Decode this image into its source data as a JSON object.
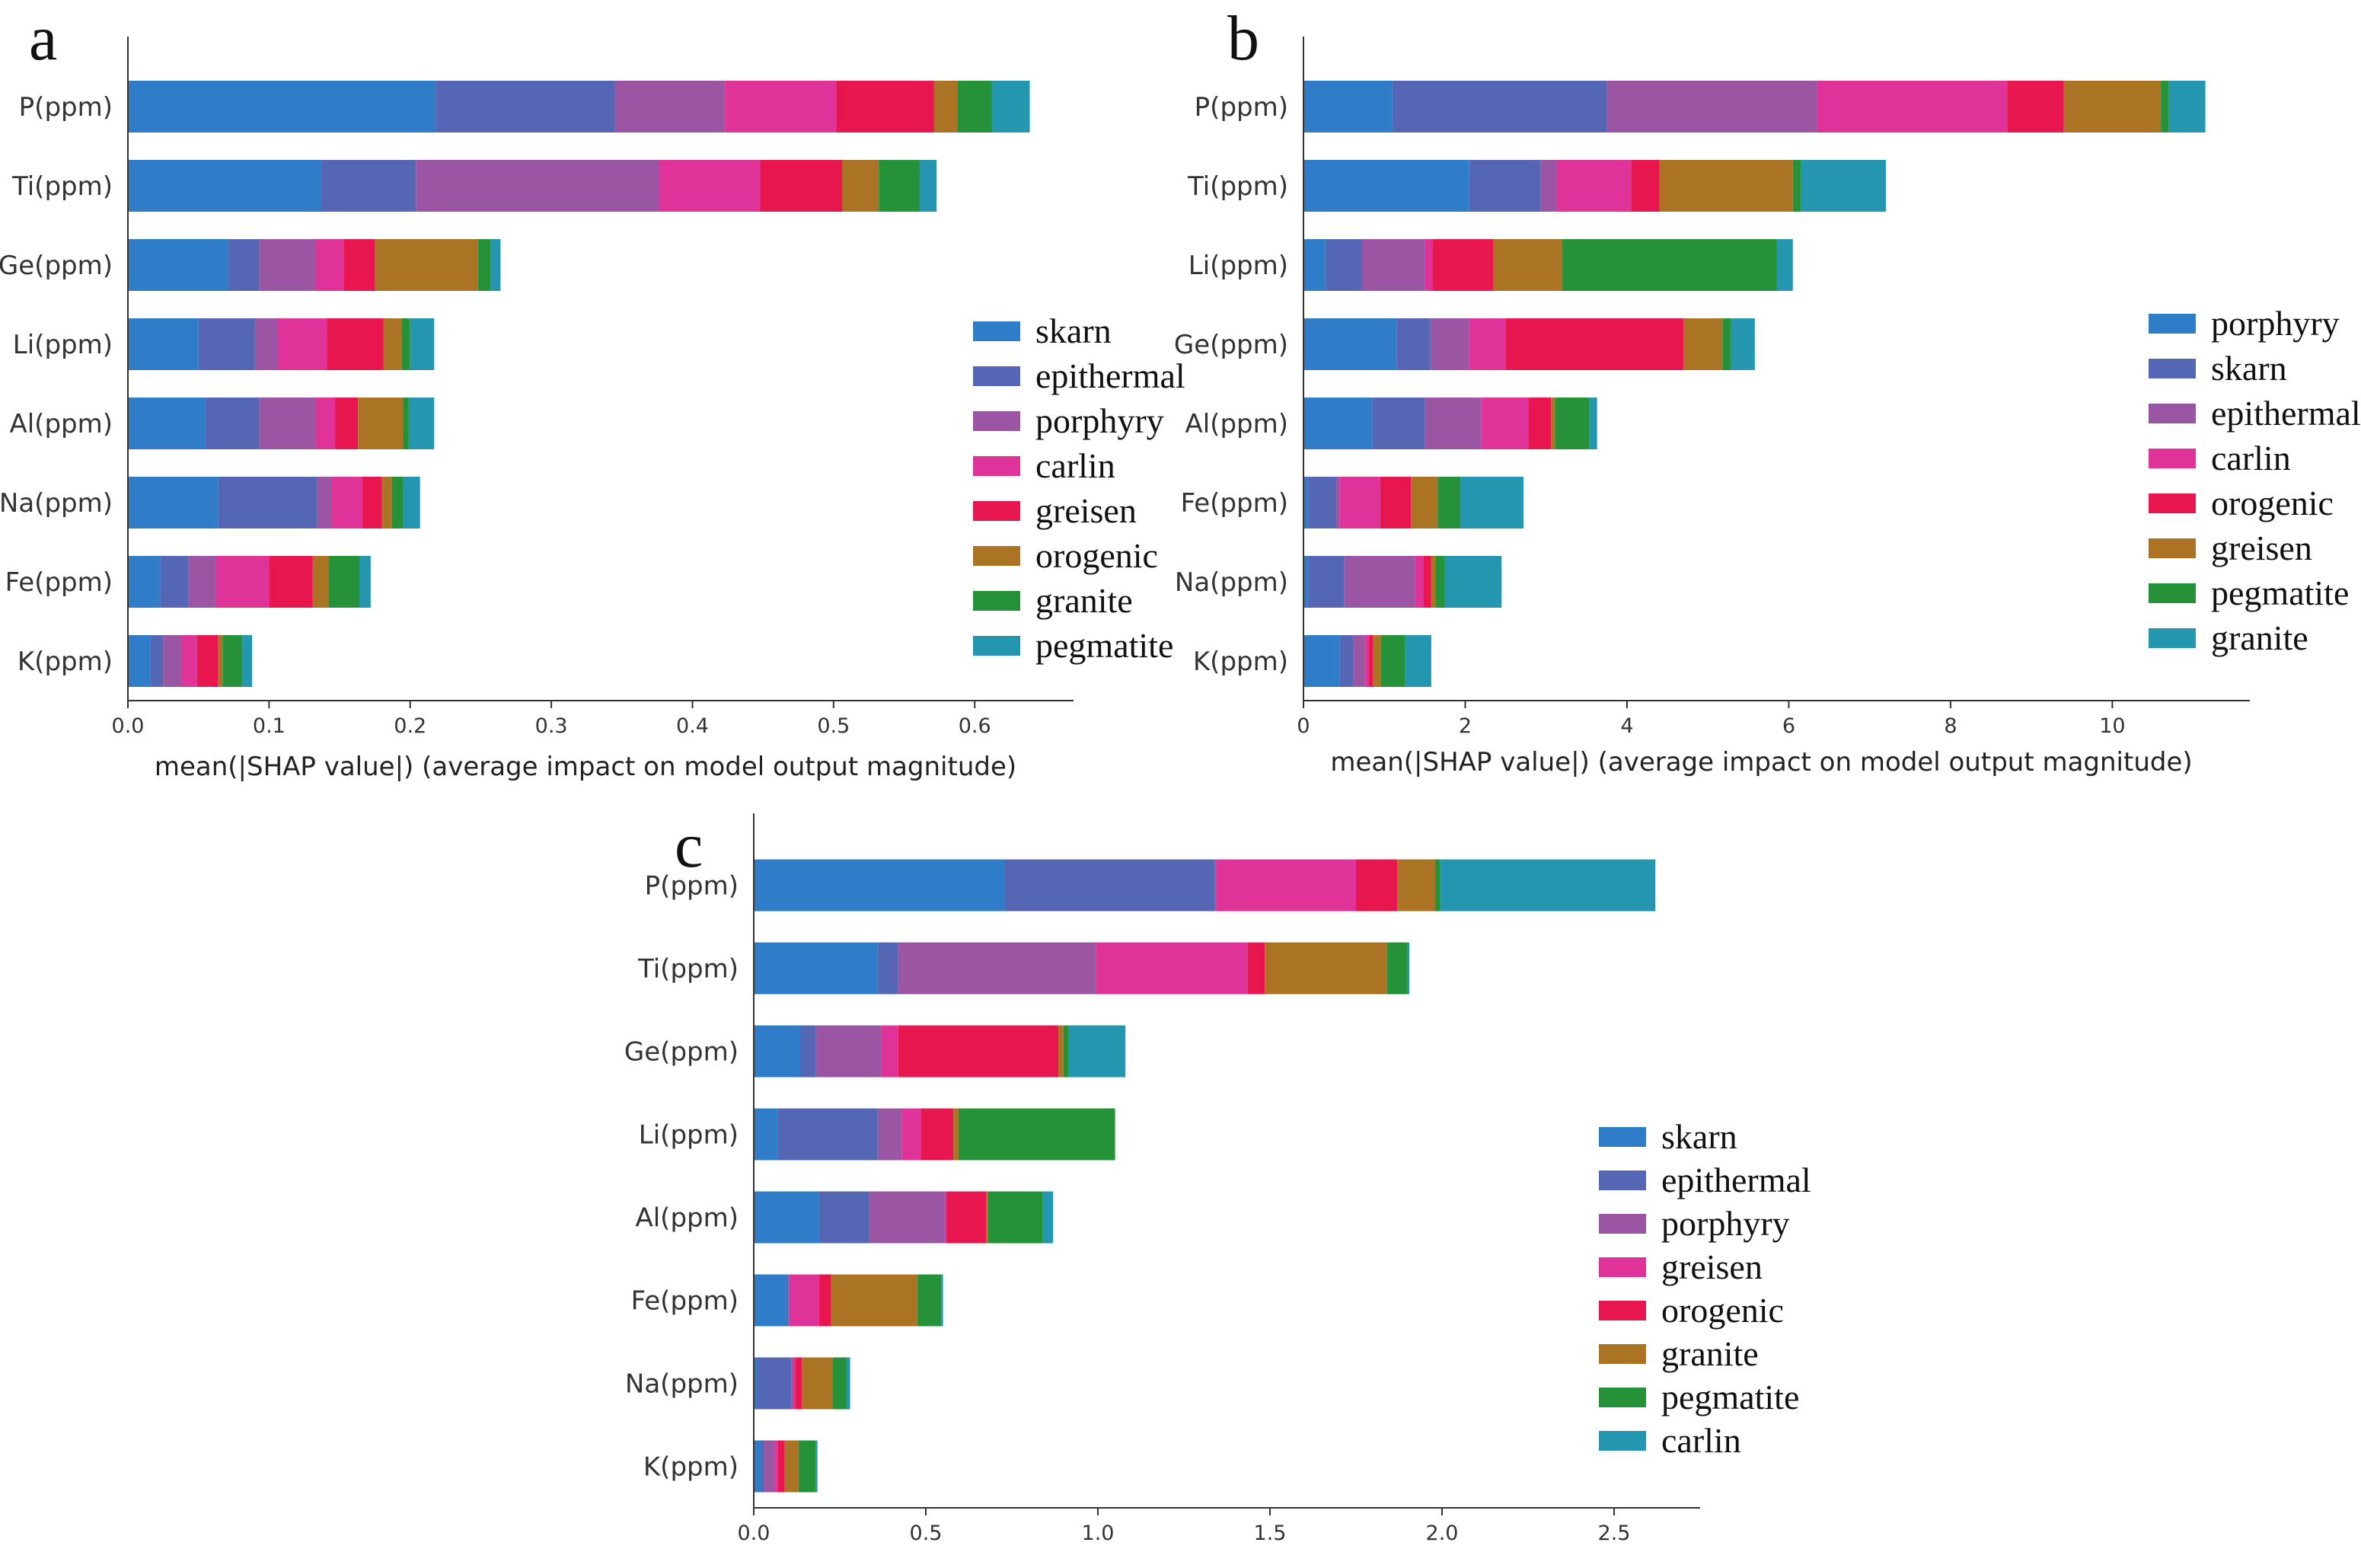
{
  "chart_data": [
    {
      "panel": "a",
      "type": "bar",
      "orientation": "horizontal",
      "stacked": true,
      "categories": [
        "P(ppm)",
        "Ti(ppm)",
        "Ge(ppm)",
        "Li(ppm)",
        "Al(ppm)",
        "Na(ppm)",
        "Fe(ppm)",
        "K(ppm)"
      ],
      "series": [
        {
          "name": "skarn",
          "color": "#2f7dc8",
          "values": [
            0.218,
            0.137,
            0.071,
            0.05,
            0.055,
            0.064,
            0.023,
            0.016
          ]
        },
        {
          "name": "epithermal",
          "color": "#5566b5",
          "values": [
            0.127,
            0.067,
            0.022,
            0.04,
            0.038,
            0.07,
            0.02,
            0.009
          ]
        },
        {
          "name": "porphyry",
          "color": "#9a55a3",
          "values": [
            0.078,
            0.172,
            0.04,
            0.016,
            0.04,
            0.01,
            0.019,
            0.013
          ]
        },
        {
          "name": "carlin",
          "color": "#e03399",
          "values": [
            0.079,
            0.072,
            0.02,
            0.035,
            0.014,
            0.022,
            0.038,
            0.011
          ]
        },
        {
          "name": "greisen",
          "color": "#e8164e",
          "values": [
            0.069,
            0.058,
            0.022,
            0.04,
            0.016,
            0.014,
            0.031,
            0.015
          ]
        },
        {
          "name": "orogenic",
          "color": "#aa7424",
          "values": [
            0.017,
            0.026,
            0.073,
            0.013,
            0.032,
            0.007,
            0.011,
            0.003
          ]
        },
        {
          "name": "granite",
          "color": "#259139",
          "values": [
            0.024,
            0.029,
            0.009,
            0.006,
            0.004,
            0.008,
            0.022,
            0.014
          ]
        },
        {
          "name": "pegmatite",
          "color": "#2596b0",
          "values": [
            0.027,
            0.012,
            0.007,
            0.017,
            0.018,
            0.012,
            0.008,
            0.007
          ]
        }
      ],
      "xlim": [
        0,
        0.67
      ],
      "xticks": [
        "0.0",
        "0.1",
        "0.2",
        "0.3",
        "0.4",
        "0.5",
        "0.6"
      ],
      "xtick_values": [
        0,
        0.1,
        0.2,
        0.3,
        0.4,
        0.5,
        0.6
      ],
      "xlabel": "mean(|SHAP value|) (average impact on model output magnitude)",
      "ylabel": "",
      "legend_position": "right"
    },
    {
      "panel": "b",
      "type": "bar",
      "orientation": "horizontal",
      "stacked": true,
      "categories": [
        "P(ppm)",
        "Ti(ppm)",
        "Li(ppm)",
        "Ge(ppm)",
        "Al(ppm)",
        "Fe(ppm)",
        "Na(ppm)",
        "K(ppm)"
      ],
      "series": [
        {
          "name": "porphyry",
          "color": "#2f7dc8",
          "values": [
            1.1,
            2.05,
            0.27,
            1.15,
            0.85,
            0.05,
            0.05,
            0.45
          ]
        },
        {
          "name": "skarn",
          "color": "#5566b5",
          "values": [
            2.65,
            0.88,
            0.45,
            0.42,
            0.65,
            0.35,
            0.45,
            0.17
          ]
        },
        {
          "name": "epithermal",
          "color": "#9a55a3",
          "values": [
            2.6,
            0.2,
            0.78,
            0.48,
            0.7,
            0.05,
            0.88,
            0.14
          ]
        },
        {
          "name": "carlin",
          "color": "#e03399",
          "values": [
            2.35,
            0.92,
            0.1,
            0.45,
            0.58,
            0.5,
            0.1,
            0.05
          ]
        },
        {
          "name": "orogenic",
          "color": "#e8164e",
          "values": [
            0.7,
            0.35,
            0.75,
            2.2,
            0.28,
            0.38,
            0.1,
            0.05
          ]
        },
        {
          "name": "greisen",
          "color": "#aa7424",
          "values": [
            1.2,
            1.65,
            0.85,
            0.48,
            0.05,
            0.33,
            0.05,
            0.1
          ]
        },
        {
          "name": "pegmatite",
          "color": "#259139",
          "values": [
            0.1,
            0.1,
            2.65,
            0.1,
            0.42,
            0.28,
            0.12,
            0.3
          ]
        },
        {
          "name": "granite",
          "color": "#2596b0",
          "values": [
            0.45,
            1.05,
            0.2,
            0.3,
            0.1,
            0.78,
            0.7,
            0.32
          ]
        }
      ],
      "xlim": [
        0,
        11.7
      ],
      "xticks": [
        "0",
        "2",
        "4",
        "6",
        "8",
        "10"
      ],
      "xtick_values": [
        0,
        2,
        4,
        6,
        8,
        10
      ],
      "xlabel": "mean(|SHAP value|) (average impact on model output magnitude)",
      "ylabel": "",
      "legend_position": "right"
    },
    {
      "panel": "c",
      "type": "bar",
      "orientation": "horizontal",
      "stacked": true,
      "categories": [
        "P(ppm)",
        "Ti(ppm)",
        "Ge(ppm)",
        "Li(ppm)",
        "Al(ppm)",
        "Fe(ppm)",
        "Na(ppm)",
        "K(ppm)"
      ],
      "series": [
        {
          "name": "skarn",
          "color": "#2f7dc8",
          "values": [
            0.73,
            0.36,
            0.135,
            0.07,
            0.19,
            0.095,
            0.01,
            0.02
          ]
        },
        {
          "name": "epithermal",
          "color": "#5566b5",
          "values": [
            0.61,
            0.06,
            0.045,
            0.29,
            0.145,
            0.005,
            0.1,
            0.01
          ]
        },
        {
          "name": "porphyry",
          "color": "#9a55a3",
          "values": [
            0.005,
            0.575,
            0.19,
            0.07,
            0.22,
            0.005,
            0.005,
            0.03
          ]
        },
        {
          "name": "greisen",
          "color": "#e03399",
          "values": [
            0.405,
            0.44,
            0.05,
            0.055,
            0.005,
            0.085,
            0.005,
            0.01
          ]
        },
        {
          "name": "orogenic",
          "color": "#e8164e",
          "values": [
            0.12,
            0.05,
            0.465,
            0.095,
            0.115,
            0.035,
            0.02,
            0.02
          ]
        },
        {
          "name": "granite",
          "color": "#aa7424",
          "values": [
            0.11,
            0.355,
            0.015,
            0.015,
            0.005,
            0.25,
            0.09,
            0.04
          ]
        },
        {
          "name": "pegmatite",
          "color": "#259139",
          "values": [
            0.015,
            0.06,
            0.015,
            0.455,
            0.16,
            0.07,
            0.04,
            0.05
          ]
        },
        {
          "name": "carlin",
          "color": "#2596b0",
          "values": [
            0.625,
            0.005,
            0.165,
            0.0,
            0.03,
            0.005,
            0.01,
            0.005
          ]
        }
      ],
      "xlim": [
        0,
        2.75
      ],
      "xticks": [
        "0.0",
        "0.5",
        "1.0",
        "1.5",
        "2.0",
        "2.5"
      ],
      "xtick_values": [
        0,
        0.5,
        1.0,
        1.5,
        2.0,
        2.5
      ],
      "xlabel": "",
      "ylabel": "",
      "legend_position": "right"
    }
  ]
}
